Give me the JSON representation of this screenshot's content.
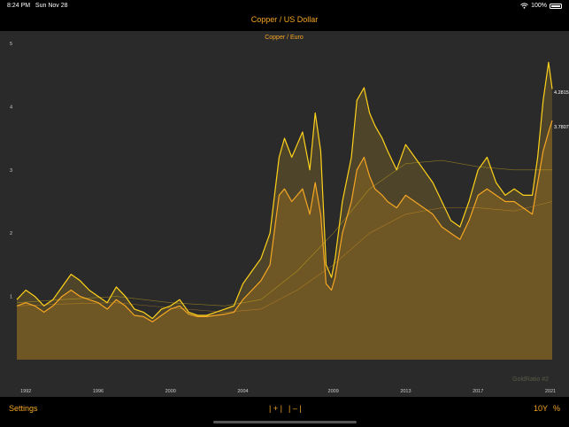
{
  "status": {
    "time": "8:24 PM",
    "date": "Sun Nov 28",
    "battery": "100%",
    "wifi_icon": "wifi-icon"
  },
  "title": "Copper / US Dollar",
  "bottom": {
    "settings": "Settings",
    "zoom_in": "| + |",
    "zoom_out": "| – |",
    "range": "10Y",
    "percent": "%"
  },
  "colors": {
    "accent": "#f5a623",
    "line_usd": "#ffd21a",
    "line_eur": "#f5a623",
    "background": "#2a2a2a"
  },
  "chart_data": {
    "type": "area",
    "subtitle": "Copper / Euro",
    "watermark": "GoldRatio #2",
    "y_ticks": [
      1,
      2,
      3,
      4,
      5
    ],
    "ylim": [
      0,
      5
    ],
    "x_ticks": [
      "1992",
      "1996",
      "2000",
      "2004",
      "2009",
      "2013",
      "2017",
      "2021"
    ],
    "xlim": [
      1991.5,
      2021.1
    ],
    "last_values": {
      "usd": "4.2815",
      "eur": "3.7807"
    },
    "series": [
      {
        "name": "",
        "role": "usd",
        "x": [
          1991.5,
          1992,
          1992.5,
          1993,
          1993.5,
          1994,
          1994.5,
          1995,
          1995.5,
          1996,
          1996.5,
          1997,
          1997.5,
          1998,
          1998.5,
          1999,
          1999.5,
          2000,
          2000.5,
          2001,
          2001.5,
          2002,
          2002.5,
          2003,
          2003.5,
          2004,
          2004.5,
          2005,
          2005.5,
          2006,
          2006.3,
          2006.7,
          2007,
          2007.3,
          2007.7,
          2008,
          2008.3,
          2008.6,
          2008.9,
          2009.1,
          2009.5,
          2010,
          2010.3,
          2010.7,
          2011,
          2011.3,
          2011.7,
          2012,
          2012.5,
          2013,
          2013.5,
          2014,
          2014.5,
          2015,
          2015.5,
          2016,
          2016.5,
          2017,
          2017.5,
          2018,
          2018.5,
          2019,
          2019.5,
          2020,
          2020.3,
          2020.6,
          2020.9,
          2021.1
        ],
        "values": [
          0.95,
          1.1,
          1.0,
          0.85,
          0.95,
          1.15,
          1.35,
          1.25,
          1.1,
          1.0,
          0.9,
          1.15,
          1.0,
          0.8,
          0.75,
          0.65,
          0.8,
          0.85,
          0.95,
          0.75,
          0.7,
          0.7,
          0.75,
          0.8,
          0.85,
          1.2,
          1.4,
          1.6,
          2.0,
          3.2,
          3.5,
          3.2,
          3.4,
          3.6,
          3.0,
          3.9,
          3.3,
          1.5,
          1.3,
          1.6,
          2.5,
          3.2,
          4.1,
          4.3,
          3.9,
          3.7,
          3.5,
          3.3,
          3.0,
          3.4,
          3.2,
          3.0,
          2.8,
          2.5,
          2.2,
          2.1,
          2.5,
          3.0,
          3.2,
          2.8,
          2.6,
          2.7,
          2.6,
          2.6,
          3.2,
          4.1,
          4.7,
          4.28
        ]
      },
      {
        "name": "",
        "role": "eur",
        "x": [
          1991.5,
          1992,
          1992.5,
          1993,
          1993.5,
          1994,
          1994.5,
          1995,
          1995.5,
          1996,
          1996.5,
          1997,
          1997.5,
          1998,
          1998.5,
          1999,
          1999.5,
          2000,
          2000.5,
          2001,
          2001.5,
          2002,
          2002.5,
          2003,
          2003.5,
          2004,
          2004.5,
          2005,
          2005.5,
          2006,
          2006.3,
          2006.7,
          2007,
          2007.3,
          2007.7,
          2008,
          2008.3,
          2008.6,
          2008.9,
          2009.1,
          2009.5,
          2010,
          2010.3,
          2010.7,
          2011,
          2011.3,
          2011.7,
          2012,
          2012.5,
          2013,
          2013.5,
          2014,
          2014.5,
          2015,
          2015.5,
          2016,
          2016.5,
          2017,
          2017.5,
          2018,
          2018.5,
          2019,
          2019.5,
          2020,
          2020.3,
          2020.6,
          2020.9,
          2021.1
        ],
        "values": [
          0.85,
          0.9,
          0.85,
          0.75,
          0.85,
          1.0,
          1.1,
          1.0,
          0.95,
          0.9,
          0.8,
          0.95,
          0.85,
          0.7,
          0.68,
          0.6,
          0.7,
          0.8,
          0.85,
          0.72,
          0.68,
          0.68,
          0.7,
          0.72,
          0.75,
          0.95,
          1.1,
          1.25,
          1.5,
          2.6,
          2.7,
          2.5,
          2.6,
          2.7,
          2.3,
          2.8,
          2.3,
          1.2,
          1.1,
          1.3,
          2.0,
          2.5,
          3.0,
          3.2,
          2.9,
          2.7,
          2.6,
          2.5,
          2.4,
          2.6,
          2.5,
          2.4,
          2.3,
          2.1,
          2.0,
          1.9,
          2.2,
          2.6,
          2.7,
          2.6,
          2.5,
          2.5,
          2.4,
          2.3,
          2.8,
          3.3,
          3.6,
          3.78
        ]
      },
      {
        "name": "",
        "role": "usd_avg",
        "x": [
          1991.5,
          1994,
          1997,
          2000,
          2003,
          2005,
          2007,
          2009,
          2011,
          2013,
          2015,
          2017,
          2019,
          2021.1
        ],
        "values": [
          0.9,
          0.95,
          1.0,
          0.9,
          0.85,
          0.95,
          1.4,
          2.0,
          2.7,
          3.1,
          3.15,
          3.05,
          3.0,
          3.0
        ]
      },
      {
        "name": "",
        "role": "eur_avg",
        "x": [
          1991.5,
          1994,
          1997,
          2000,
          2003,
          2005,
          2007,
          2009,
          2011,
          2013,
          2015,
          2017,
          2019,
          2021.1
        ],
        "values": [
          0.85,
          0.88,
          0.9,
          0.82,
          0.75,
          0.8,
          1.1,
          1.5,
          2.0,
          2.3,
          2.4,
          2.4,
          2.35,
          2.5
        ]
      }
    ]
  }
}
